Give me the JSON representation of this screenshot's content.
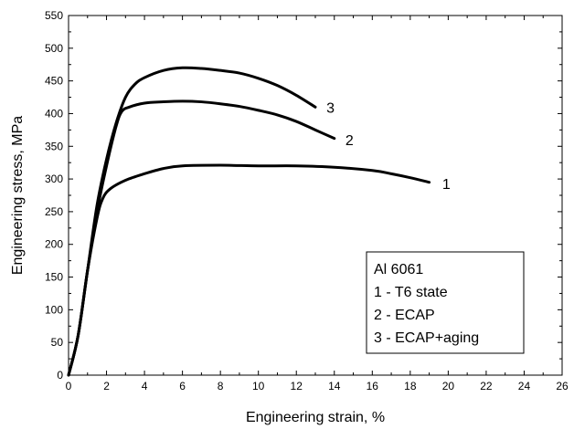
{
  "chart_data": {
    "type": "line",
    "title": "",
    "xlabel": "Engineering strain, %",
    "ylabel": "Engineering stress, MPa",
    "xlim": [
      0,
      26
    ],
    "ylim": [
      0,
      550
    ],
    "xticks": [
      0,
      2,
      4,
      6,
      8,
      10,
      12,
      14,
      16,
      18,
      20,
      22,
      24,
      26
    ],
    "yticks": [
      0,
      50,
      100,
      150,
      200,
      250,
      300,
      350,
      400,
      450,
      500,
      550
    ],
    "grid": false,
    "legend_placement": "bottom-right",
    "legend_lines": [
      "Al 6061",
      "1 - T6 state",
      "2 - ECAP",
      "3 - ECAP+aging"
    ],
    "series": [
      {
        "name": "1",
        "points": [
          [
            0,
            0
          ],
          [
            0.5,
            60
          ],
          [
            1.0,
            160
          ],
          [
            1.5,
            240
          ],
          [
            1.8,
            270
          ],
          [
            2.2,
            285
          ],
          [
            3,
            298
          ],
          [
            4,
            308
          ],
          [
            5,
            316
          ],
          [
            6,
            320
          ],
          [
            8,
            321
          ],
          [
            10,
            320
          ],
          [
            12,
            320
          ],
          [
            14,
            318
          ],
          [
            16,
            313
          ],
          [
            17,
            308
          ],
          [
            18,
            302
          ],
          [
            19,
            295
          ]
        ]
      },
      {
        "name": "2",
        "points": [
          [
            0,
            0
          ],
          [
            0.5,
            60
          ],
          [
            1.0,
            160
          ],
          [
            1.5,
            250
          ],
          [
            2.0,
            320
          ],
          [
            2.5,
            380
          ],
          [
            2.8,
            403
          ],
          [
            3.2,
            410
          ],
          [
            4,
            416
          ],
          [
            5,
            418
          ],
          [
            6,
            419
          ],
          [
            7,
            418
          ],
          [
            8,
            415
          ],
          [
            9,
            411
          ],
          [
            10,
            405
          ],
          [
            11,
            398
          ],
          [
            12,
            388
          ],
          [
            13,
            375
          ],
          [
            14,
            362
          ]
        ]
      },
      {
        "name": "3",
        "points": [
          [
            0,
            0
          ],
          [
            0.5,
            60
          ],
          [
            1.0,
            160
          ],
          [
            1.5,
            260
          ],
          [
            2.0,
            330
          ],
          [
            2.5,
            385
          ],
          [
            3.0,
            425
          ],
          [
            3.5,
            445
          ],
          [
            4,
            455
          ],
          [
            5,
            466
          ],
          [
            6,
            470
          ],
          [
            7,
            469
          ],
          [
            8,
            466
          ],
          [
            9,
            462
          ],
          [
            10,
            454
          ],
          [
            11,
            443
          ],
          [
            12,
            428
          ],
          [
            13,
            410
          ]
        ]
      }
    ],
    "curve_labels": [
      {
        "text": "1",
        "x": 19.9,
        "y": 293
      },
      {
        "text": "2",
        "x": 14.8,
        "y": 360
      },
      {
        "text": "3",
        "x": 13.8,
        "y": 410
      }
    ]
  }
}
